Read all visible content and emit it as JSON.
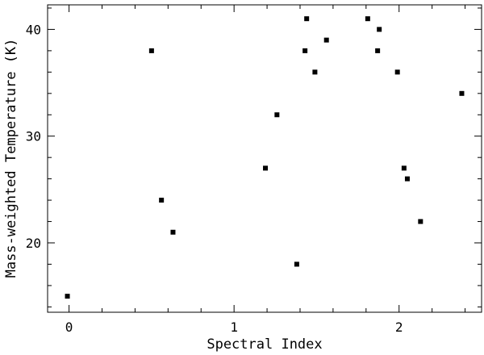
{
  "chart_data": {
    "type": "scatter",
    "title": "",
    "xlabel": "Spectral Index",
    "ylabel": "Mass-weighted Temperature (K)",
    "xlim": [
      -0.13,
      2.5
    ],
    "ylim": [
      13.5,
      42.3
    ],
    "x_ticks": [
      0,
      1,
      2
    ],
    "x_tick_labels": [
      "0",
      "1",
      "2"
    ],
    "y_ticks": [
      20,
      30,
      40
    ],
    "y_tick_labels": [
      "20",
      "30",
      "40"
    ],
    "grid": false,
    "legend": "none",
    "marker": "square",
    "marker_color": "#000000",
    "series": [
      {
        "points": [
          {
            "x": -0.01,
            "y": 15
          },
          {
            "x": 0.5,
            "y": 38
          },
          {
            "x": 0.56,
            "y": 24
          },
          {
            "x": 0.63,
            "y": 21
          },
          {
            "x": 1.19,
            "y": 27
          },
          {
            "x": 1.26,
            "y": 32
          },
          {
            "x": 1.38,
            "y": 18
          },
          {
            "x": 1.43,
            "y": 38
          },
          {
            "x": 1.44,
            "y": 41
          },
          {
            "x": 1.49,
            "y": 36
          },
          {
            "x": 1.56,
            "y": 39
          },
          {
            "x": 1.81,
            "y": 41
          },
          {
            "x": 1.87,
            "y": 38
          },
          {
            "x": 1.88,
            "y": 40
          },
          {
            "x": 1.99,
            "y": 36
          },
          {
            "x": 2.03,
            "y": 27
          },
          {
            "x": 2.05,
            "y": 26
          },
          {
            "x": 2.13,
            "y": 22
          },
          {
            "x": 2.38,
            "y": 34
          }
        ]
      }
    ]
  }
}
